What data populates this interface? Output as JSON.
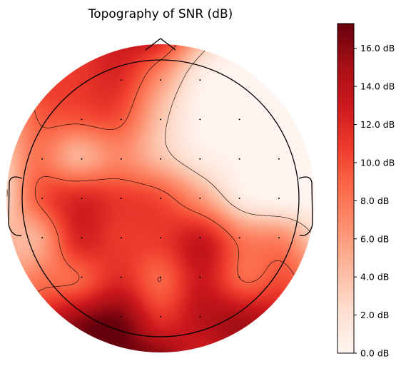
{
  "chart_data": {
    "type": "heatmap",
    "title": "Topography of SNR (dB)",
    "colormap": "Reds",
    "colorbar": {
      "range": [
        0,
        17.3
      ],
      "ticks": [
        0,
        2,
        4,
        6,
        8,
        10,
        12,
        14,
        16
      ],
      "tick_labels": [
        "0.0 dB",
        "2.0 dB",
        "4.0 dB",
        "6.0 dB",
        "8.0 dB",
        "10.0 dB",
        "12.0 dB",
        "14.0 dB",
        "16.0 dB"
      ],
      "colors": [
        "#fff5f0",
        "#fee0d2",
        "#fcbba1",
        "#fc9272",
        "#fb6a4a",
        "#ef3b2c",
        "#cb181d",
        "#a50f15",
        "#67000d"
      ]
    },
    "contour_levels": [
      3,
      9
    ],
    "sensor_grid": {
      "x": [
        -1.2,
        -0.9,
        -0.6,
        -0.3,
        0,
        0.3,
        0.6,
        0.9,
        1.2
      ],
      "y": [
        1.2,
        0.9,
        0.6,
        0.3,
        0,
        -0.3,
        -0.6,
        -0.9,
        -1.2
      ],
      "snr_db": [
        [
          6,
          6,
          10,
          13,
          13,
          5,
          0,
          0,
          0
        ],
        [
          6,
          10,
          11,
          12,
          7,
          1,
          0,
          0,
          0
        ],
        [
          3,
          9,
          10,
          10,
          4,
          0,
          0,
          0,
          0
        ],
        [
          2,
          8,
          5,
          7,
          4,
          1,
          0,
          0,
          0
        ],
        [
          1,
          9,
          12,
          11,
          10,
          6,
          1,
          0,
          0
        ],
        [
          5,
          5,
          12,
          11,
          11,
          13,
          8,
          7,
          2
        ],
        [
          4,
          8,
          9,
          12,
          9,
          13,
          9,
          10,
          6
        ],
        [
          3,
          11,
          16,
          17,
          12,
          14,
          15,
          12,
          6
        ],
        [
          2,
          10,
          17,
          17,
          17,
          12,
          13,
          9,
          3
        ]
      ]
    }
  }
}
